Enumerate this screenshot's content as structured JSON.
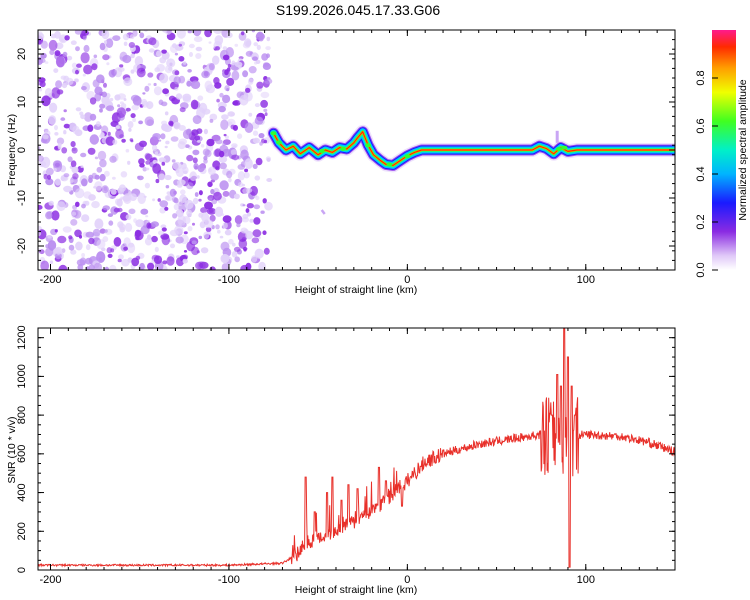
{
  "title": "S199.2026.045.17.33.G06",
  "chart_data": [
    {
      "type": "heatmap",
      "xlabel": "Height of straight line (km)",
      "ylabel": "Frequency (Hz)",
      "xlim": [
        -207,
        150
      ],
      "ylim": [
        -25,
        25
      ],
      "xticks": [
        -200,
        -100,
        0,
        100
      ],
      "yticks": [
        -20,
        -10,
        0,
        10,
        20
      ],
      "xtick_labels": [
        "-200",
        "-100",
        "0",
        "100"
      ],
      "ytick_labels": [
        "-20",
        "-10",
        "0",
        "10",
        "20"
      ],
      "noise_region": {
        "x_from": -207,
        "x_to": -75
      },
      "ridge": [
        [
          -75,
          3.5
        ],
        [
          -72,
          1.5
        ],
        [
          -68,
          0
        ],
        [
          -64,
          0.8
        ],
        [
          -60,
          -0.8
        ],
        [
          -55,
          0.5
        ],
        [
          -50,
          -1
        ],
        [
          -46,
          0
        ],
        [
          -42,
          -0.5
        ],
        [
          -38,
          0.5
        ],
        [
          -34,
          0.2
        ],
        [
          -30,
          1.5
        ],
        [
          -28,
          2.5
        ],
        [
          -25,
          3.8
        ],
        [
          -22,
          1
        ],
        [
          -19,
          -1
        ],
        [
          -15,
          -2.2
        ],
        [
          -12,
          -3
        ],
        [
          -8,
          -3.2
        ],
        [
          -4,
          -2.2
        ],
        [
          0,
          -1.2
        ],
        [
          4,
          -0.5
        ],
        [
          8,
          0
        ],
        [
          15,
          0
        ],
        [
          30,
          0
        ],
        [
          50,
          0
        ],
        [
          70,
          0
        ],
        [
          74,
          0.8
        ],
        [
          78,
          0.3
        ],
        [
          82,
          -0.8
        ],
        [
          86,
          0.5
        ],
        [
          90,
          -0.3
        ],
        [
          95,
          0
        ],
        [
          110,
          0
        ],
        [
          130,
          0
        ],
        [
          150,
          0
        ]
      ],
      "colorbar": {
        "label": "Normalized spectral amplitude",
        "range": [
          0,
          1
        ],
        "ticks": [
          0.0,
          0.2,
          0.4,
          0.6,
          0.8
        ],
        "tick_labels": [
          "0.0",
          "0.2",
          "0.4",
          "0.6",
          "0.8"
        ]
      }
    },
    {
      "type": "line",
      "xlabel": "Height of straight line (km)",
      "ylabel": "SNR (10 * v/v)",
      "xlim": [
        -207,
        150
      ],
      "ylim": [
        0,
        1250
      ],
      "xticks": [
        -200,
        -100,
        0,
        100
      ],
      "yticks": [
        0,
        200,
        400,
        600,
        800,
        1000,
        1200
      ],
      "xtick_labels": [
        "-200",
        "-100",
        "0",
        "100"
      ],
      "ytick_labels": [
        "0",
        "200",
        "400",
        "600",
        "800",
        "1000",
        "1200"
      ],
      "series": [
        {
          "name": "SNR",
          "color": "#e8302a",
          "envelope": [
            [
              -207,
              25
            ],
            [
              -100,
              25
            ],
            [
              -70,
              35
            ],
            [
              -62,
              80
            ],
            [
              -55,
              150
            ],
            [
              -40,
              200
            ],
            [
              -25,
              270
            ],
            [
              -10,
              380
            ],
            [
              0,
              460
            ],
            [
              10,
              560
            ],
            [
              20,
              600
            ],
            [
              40,
              650
            ],
            [
              60,
              680
            ],
            [
              75,
              700
            ],
            [
              80,
              700
            ],
            [
              90,
              690
            ],
            [
              100,
              700
            ],
            [
              120,
              690
            ],
            [
              135,
              660
            ],
            [
              150,
              610
            ]
          ],
          "spikes": [
            [
              -57,
              480
            ],
            [
              -52,
              300
            ],
            [
              -45,
              400
            ],
            [
              -42,
              480
            ],
            [
              -37,
              360
            ],
            [
              -33,
              440
            ],
            [
              -28,
              420
            ],
            [
              -16,
              530
            ],
            [
              -12,
              460
            ],
            [
              -3,
              330
            ],
            [
              81,
              800
            ],
            [
              84,
              1010
            ],
            [
              86,
              950
            ],
            [
              88,
              1250
            ],
            [
              90,
              1100
            ],
            [
              91,
              15
            ],
            [
              92,
              950
            ],
            [
              94,
              800
            ]
          ]
        }
      ]
    }
  ]
}
